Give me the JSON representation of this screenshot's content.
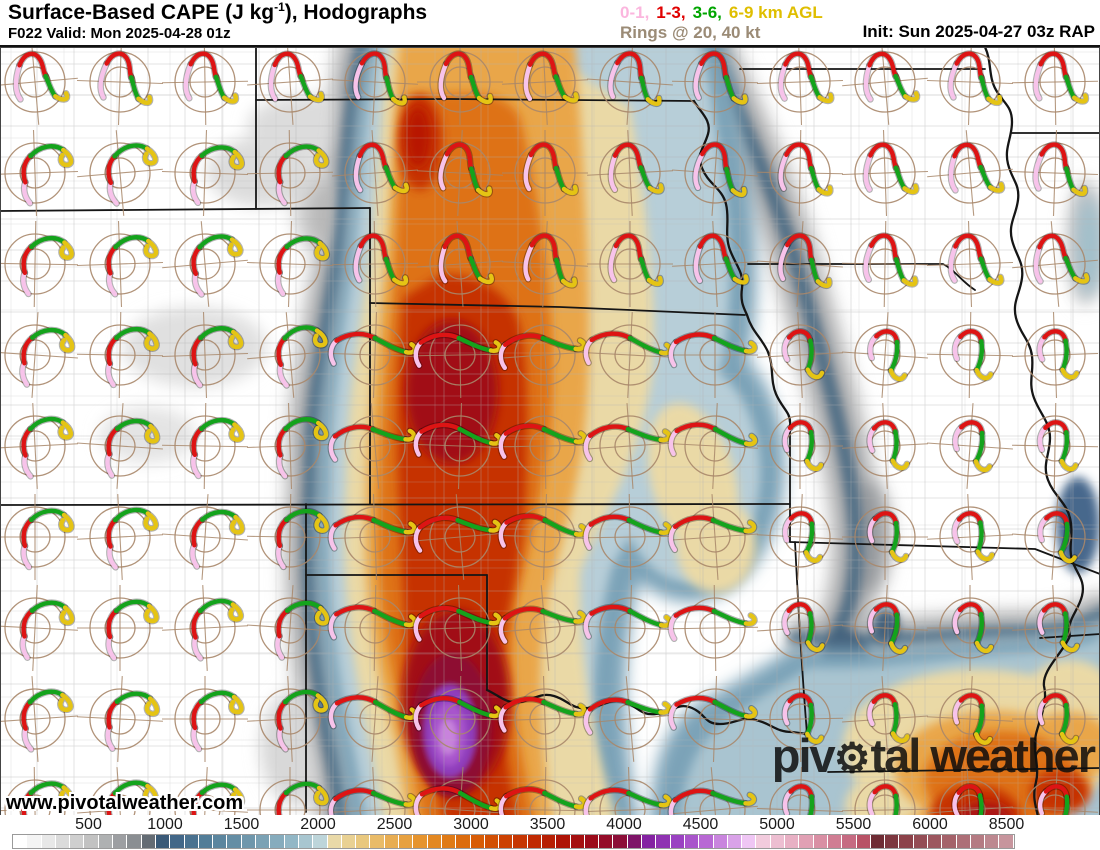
{
  "header": {
    "title_part1": "Surface-Based CAPE (J kg",
    "title_sup": "-1",
    "title_part2": "), Hodographs",
    "valid": "F022 Valid: Mon 2025-04-28 01z",
    "init": "Init: Sun 2025-04-27 03z RAP",
    "legend": {
      "items": [
        {
          "label": "0-1,",
          "color": "#fbb6de"
        },
        {
          "label": "1-3,",
          "color": "#e00000"
        },
        {
          "label": "3-6,",
          "color": "#00a500"
        },
        {
          "label": "6-9 km AGL",
          "color": "#dfbe00"
        }
      ],
      "rings_label": "Rings @ 20, 40 kt",
      "rings_color": "#9b8b76"
    }
  },
  "map": {
    "watermark": "www.pivotalweather.com",
    "logo": {
      "part1": "piv",
      "gear": "⚙",
      "part2": "tal weather"
    },
    "hodograph": {
      "ring_color": "#a8876a",
      "rings_kt": [
        20,
        40
      ],
      "layers_order": [
        "km0_1",
        "km1_3",
        "km3_6",
        "km6_9"
      ],
      "layer_colors": {
        "km0_1": "#f7c3ea",
        "km1_3": "#dd1414",
        "km3_6": "#14a31c",
        "km6_9": "#e5c414"
      }
    }
  },
  "colorbar": {
    "unit": "J/kg",
    "labels": [
      500,
      1000,
      1500,
      2000,
      2500,
      3000,
      3500,
      4000,
      4500,
      5000,
      5500,
      6000,
      8500
    ],
    "stops": [
      [
        0,
        "#ffffff"
      ],
      [
        2,
        "#e8e8e8"
      ],
      [
        5,
        "#c2c2c2"
      ],
      [
        8,
        "#8a8e92"
      ],
      [
        9,
        "#646c74"
      ],
      [
        10,
        "#3a5a78"
      ],
      [
        11,
        "#426788"
      ],
      [
        13,
        "#527d98"
      ],
      [
        16,
        "#6f97ac"
      ],
      [
        19,
        "#92b7c6"
      ],
      [
        21,
        "#bdd5da"
      ],
      [
        22,
        "#e9d9a8"
      ],
      [
        24,
        "#e9c87e"
      ],
      [
        26,
        "#e8ad52"
      ],
      [
        28,
        "#e6942e"
      ],
      [
        30,
        "#e07b16"
      ],
      [
        32,
        "#d85c06"
      ],
      [
        34,
        "#cc4102"
      ],
      [
        36,
        "#c02a02"
      ],
      [
        38,
        "#ae1306"
      ],
      [
        40,
        "#9c0a1a"
      ],
      [
        42,
        "#8c0e38"
      ],
      [
        43,
        "#7e1468"
      ],
      [
        44,
        "#8422a2"
      ],
      [
        46,
        "#9a42c2"
      ],
      [
        48,
        "#b868d4"
      ],
      [
        50,
        "#d9a2e8"
      ],
      [
        51,
        "#efc6f4"
      ],
      [
        52,
        "#f2cbdd"
      ],
      [
        54,
        "#e8b0c4"
      ],
      [
        56,
        "#d98fa4"
      ],
      [
        58,
        "#c66b82"
      ],
      [
        59,
        "#b85266"
      ],
      [
        60,
        "#6e2c34"
      ],
      [
        62,
        "#8c424a"
      ],
      [
        65,
        "#a5626a"
      ],
      [
        68,
        "#bd8890"
      ],
      [
        70,
        "#d0a2aa"
      ]
    ]
  }
}
